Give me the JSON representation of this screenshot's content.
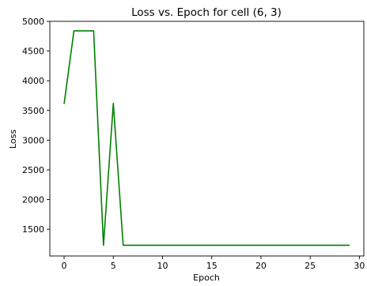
{
  "chart_data": {
    "type": "line",
    "title": "Loss vs. Epoch for cell (6, 3)",
    "xlabel": "Epoch",
    "ylabel": "Loss",
    "xlim": [
      -1.45,
      30.45
    ],
    "ylim": [
      1050,
      5000
    ],
    "xticks": [
      0,
      5,
      10,
      15,
      20,
      25,
      30
    ],
    "yticks": [
      1500,
      2000,
      2500,
      3000,
      3500,
      4000,
      4500,
      5000
    ],
    "grid": false,
    "legend": "none",
    "series": [
      {
        "color": "#008000",
        "x": [
          0,
          1,
          2,
          3,
          4,
          5,
          6,
          7,
          8,
          9,
          10,
          11,
          12,
          13,
          14,
          15,
          16,
          17,
          18,
          19,
          20,
          21,
          22,
          23,
          24,
          25,
          26,
          27,
          28,
          29
        ],
        "y": [
          3610,
          4840,
          4840,
          4840,
          1230,
          3620,
          1230,
          1230,
          1230,
          1230,
          1230,
          1230,
          1230,
          1230,
          1230,
          1230,
          1230,
          1230,
          1230,
          1230,
          1230,
          1230,
          1230,
          1230,
          1230,
          1230,
          1230,
          1230,
          1230,
          1230
        ]
      }
    ]
  }
}
